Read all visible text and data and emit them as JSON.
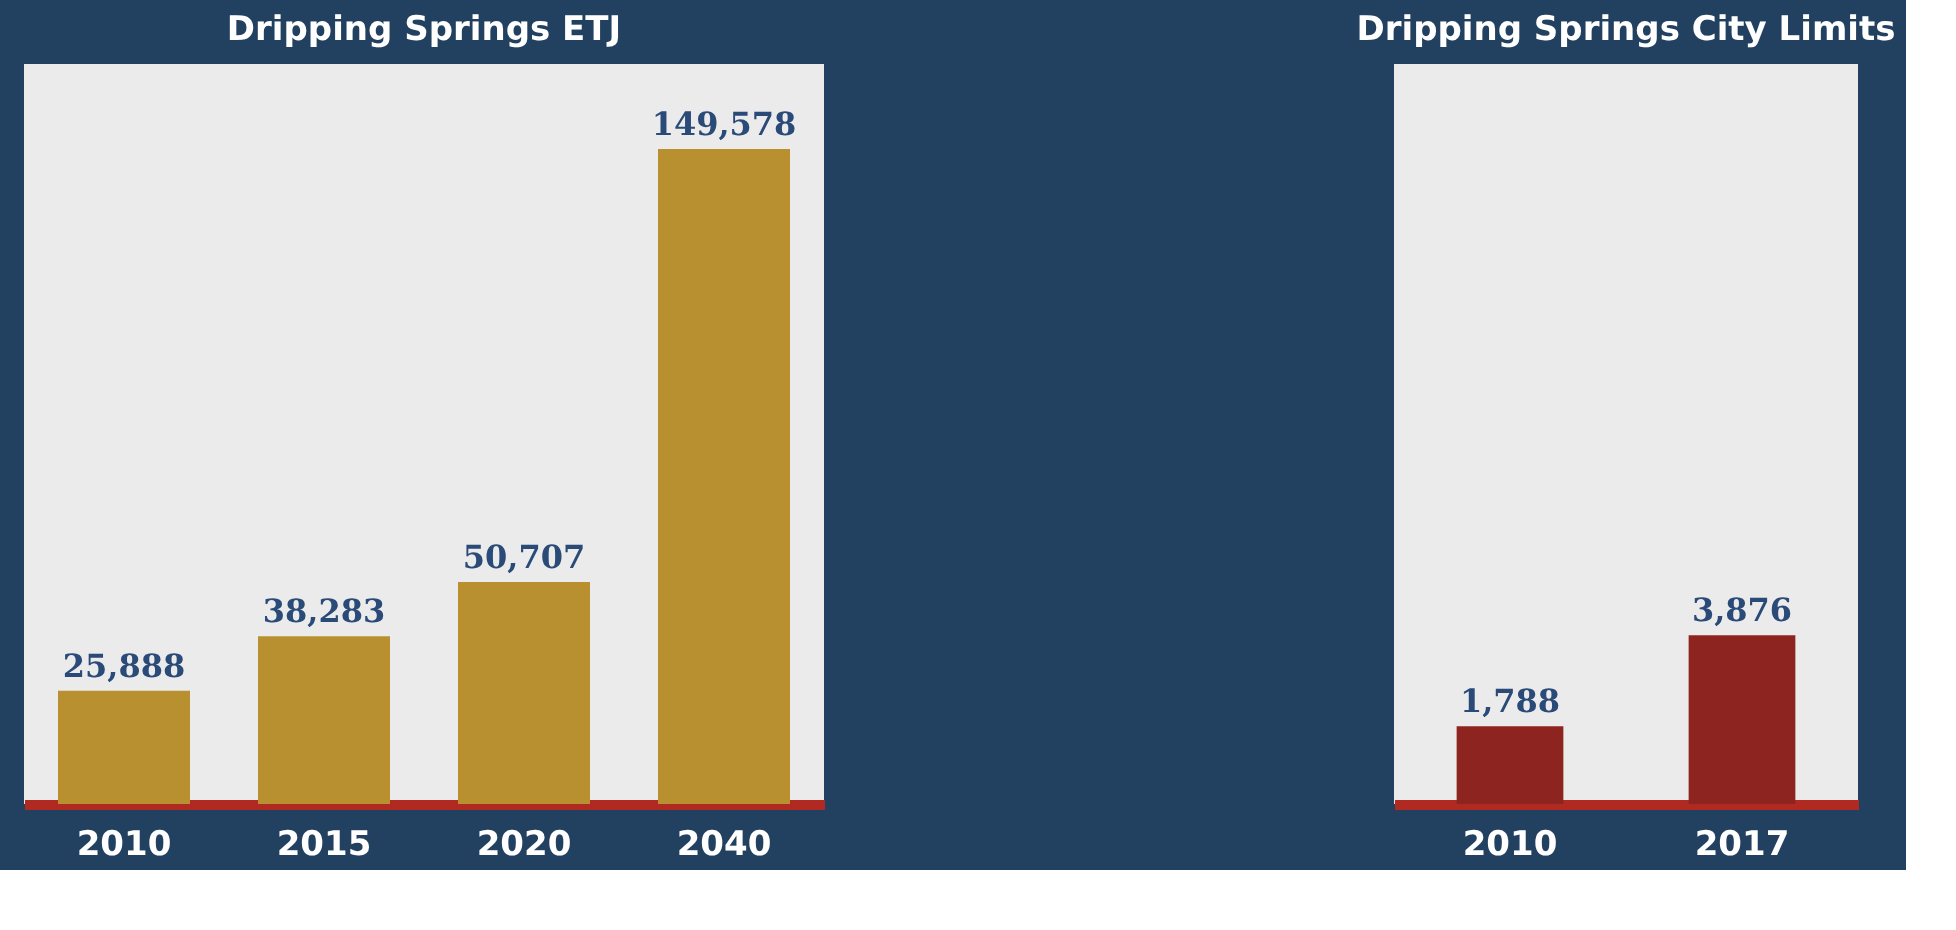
{
  "chart_data": [
    {
      "type": "bar",
      "title": "Dripping Springs ETJ",
      "categories": [
        "2010",
        "2015",
        "2020",
        "2040"
      ],
      "values": [
        25888,
        38283,
        50707,
        149578
      ],
      "value_labels": [
        "25,888",
        "38,283",
        "50,707",
        "149,578"
      ],
      "color": "#b8902f",
      "ylim": [
        0,
        169000
      ]
    },
    {
      "type": "bar",
      "title": "Dripping Springs City Limits",
      "categories": [
        "2010",
        "2017"
      ],
      "values": [
        1788,
        3876
      ],
      "value_labels": [
        "1,788",
        "3,876"
      ],
      "color": "#8e2420",
      "ylim": [
        0,
        17000
      ]
    }
  ]
}
